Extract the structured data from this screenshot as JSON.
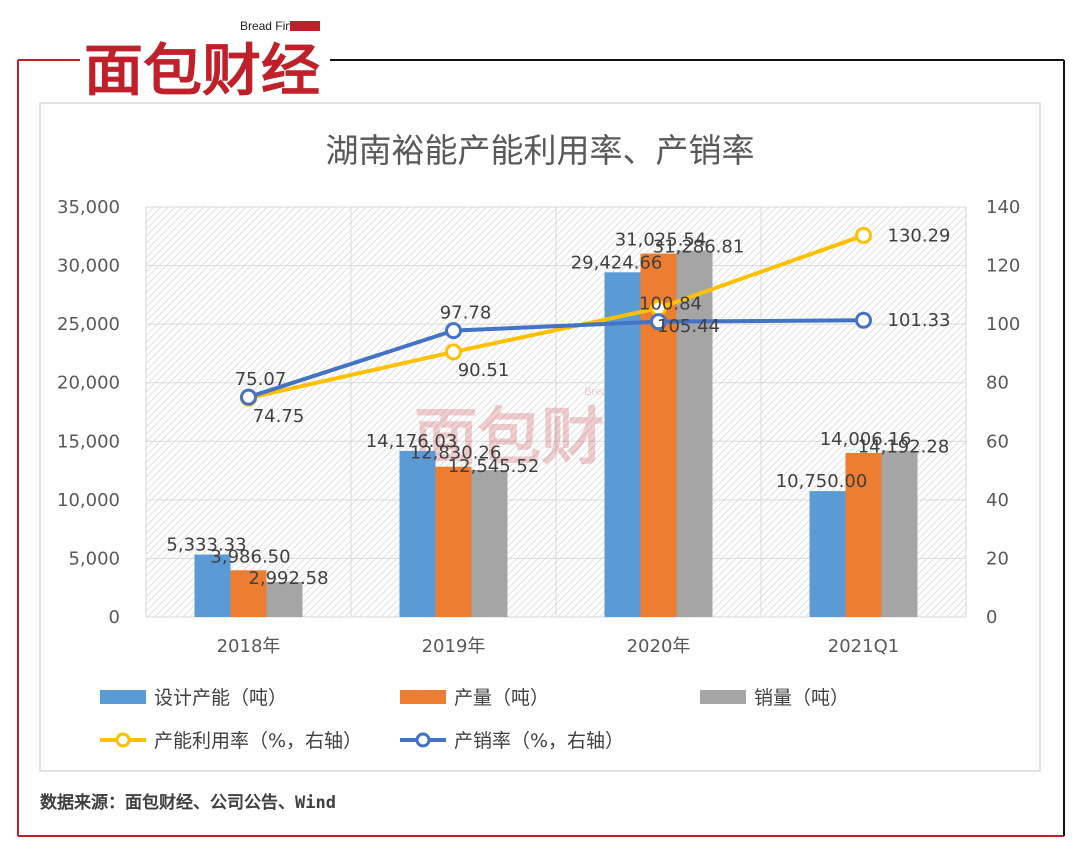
{
  "brand": {
    "logo_text": "面包财经",
    "logo_sub": "Bread Finance",
    "accent_color": "#c0202a"
  },
  "source_note": "数据来源：面包财经、公司公告、Wind",
  "chart_data": {
    "type": "bar",
    "title": "湖南裕能产能利用率、产销率",
    "categories": [
      "2018年",
      "2019年",
      "2020年",
      "2021Q1"
    ],
    "left_axis": {
      "ylim": [
        0,
        35000
      ],
      "ticks": [
        "0",
        "5,000",
        "10,000",
        "15,000",
        "20,000",
        "25,000",
        "30,000",
        "35,000"
      ]
    },
    "right_axis": {
      "ylim": [
        0,
        140
      ],
      "ticks": [
        "0",
        "20",
        "40",
        "60",
        "80",
        "100",
        "120",
        "140"
      ]
    },
    "grid": true,
    "legend_position": "bottom",
    "series": [
      {
        "name": "设计产能（吨）",
        "type": "bar",
        "axis": "left",
        "color": "#5b9bd5",
        "values": [
          5333.33,
          14176.03,
          29424.66,
          10750.0
        ],
        "labels": [
          "5,333.33",
          "14,176.03",
          "29,424.66",
          "10,750.00"
        ]
      },
      {
        "name": "产量（吨）",
        "type": "bar",
        "axis": "left",
        "color": "#ed7d31",
        "values": [
          3986.5,
          12830.26,
          31025.54,
          14006.16
        ],
        "labels": [
          "3,986.50",
          "12,830.26",
          "31,025.54",
          "14,006.16"
        ]
      },
      {
        "name": "销量（吨）",
        "type": "bar",
        "axis": "left",
        "color": "#a5a5a5",
        "values": [
          2992.58,
          12545.52,
          31286.81,
          14192.28
        ],
        "labels": [
          "2,992.58",
          "12,545.52",
          "31,286.81",
          "14,192.28"
        ]
      },
      {
        "name": "产能利用率（%，右轴）",
        "type": "line",
        "axis": "right",
        "color": "#ffc000",
        "values": [
          74.75,
          90.51,
          105.44,
          130.29
        ],
        "labels": [
          "74.75",
          "90.51",
          "105.44",
          "130.29"
        ]
      },
      {
        "name": "产销率（%，右轴）",
        "type": "line",
        "axis": "right",
        "color": "#4472c4",
        "values": [
          75.07,
          97.78,
          100.84,
          101.33
        ],
        "labels": [
          "75.07",
          "97.78",
          "100.84",
          "101.33"
        ]
      }
    ]
  }
}
